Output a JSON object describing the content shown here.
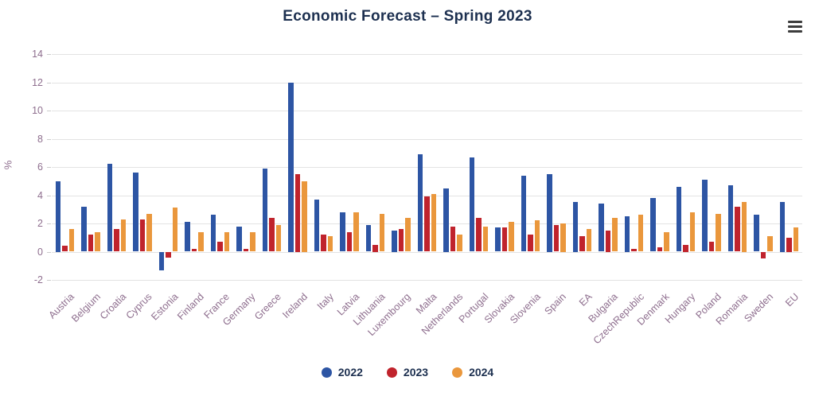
{
  "header": {
    "title": "Economic Forecast – Spring 2023",
    "menu_icon": "hamburger-menu-icon"
  },
  "colors": {
    "title_text": "#1d3050",
    "axis_labels": "#8e6e8e",
    "gridline": "#e3e3e3",
    "legend_text": "#1d3050"
  },
  "chart_data": {
    "type": "bar",
    "title": "Economic Forecast – Spring 2023",
    "xlabel": "",
    "ylabel": "%",
    "ylim": [
      -2,
      14
    ],
    "yticks": [
      -2,
      0,
      2,
      4,
      6,
      8,
      10,
      12,
      14
    ],
    "grid": true,
    "legend_position": "bottom",
    "categories": [
      "Austria",
      "Belgium",
      "Croatia",
      "Cyprus",
      "Estonia",
      "Finland",
      "France",
      "Germany",
      "Greece",
      "Ireland",
      "Italy",
      "Latvia",
      "Lithuania",
      "Luxembourg",
      "Malta",
      "Netherlands",
      "Portugal",
      "Slovakia",
      "Slovenia",
      "Spain",
      "EA",
      "Bulgaria",
      "CzechRepublic",
      "Denmark",
      "Hungary",
      "Poland",
      "Romania",
      "Sweden",
      "EU"
    ],
    "series": [
      {
        "name": "2022",
        "color": "#2d55a4",
        "values": [
          5.0,
          3.2,
          6.2,
          5.6,
          -1.3,
          2.1,
          2.6,
          1.8,
          5.9,
          12.0,
          3.7,
          2.8,
          1.9,
          1.5,
          6.9,
          4.5,
          6.7,
          1.7,
          5.4,
          5.5,
          3.5,
          3.4,
          2.5,
          3.8,
          4.6,
          5.1,
          4.7,
          2.6,
          3.5
        ]
      },
      {
        "name": "2023",
        "color": "#c0232c",
        "values": [
          0.4,
          1.2,
          1.6,
          2.3,
          -0.4,
          0.2,
          0.7,
          0.2,
          2.4,
          5.5,
          1.2,
          1.4,
          0.5,
          1.6,
          3.9,
          1.8,
          2.4,
          1.7,
          1.2,
          1.9,
          1.1,
          1.5,
          0.2,
          0.3,
          0.5,
          0.7,
          3.2,
          -0.5,
          1.0
        ]
      },
      {
        "name": "2024",
        "color": "#ea973c",
        "values": [
          1.6,
          1.4,
          2.3,
          2.7,
          3.1,
          1.4,
          1.4,
          1.4,
          1.9,
          5.0,
          1.1,
          2.8,
          2.7,
          2.4,
          4.1,
          1.2,
          1.8,
          2.1,
          2.2,
          2.0,
          1.6,
          2.4,
          2.6,
          1.4,
          2.8,
          2.7,
          3.5,
          1.1,
          1.7
        ]
      }
    ]
  }
}
